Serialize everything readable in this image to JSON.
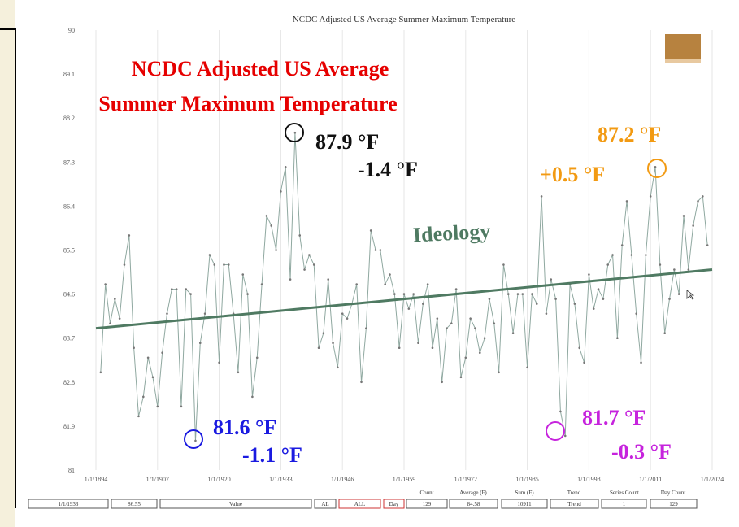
{
  "chart_data": {
    "type": "line",
    "title": "NCDC Adjusted US Average Summer Maximum Temperature",
    "xlim": [
      1894,
      2024
    ],
    "xticks": [
      {
        "value": 1894,
        "label": "1/1/1894"
      },
      {
        "value": 1907,
        "label": "1/1/1907"
      },
      {
        "value": 1920,
        "label": "1/1/1920"
      },
      {
        "value": 1933,
        "label": "1/1/1933"
      },
      {
        "value": 1946,
        "label": "1/1/1946"
      },
      {
        "value": 1959,
        "label": "1/1/1959"
      },
      {
        "value": 1972,
        "label": "1/1/1972"
      },
      {
        "value": 1985,
        "label": "1/1/1985"
      },
      {
        "value": 1998,
        "label": "1/1/1998"
      },
      {
        "value": 2011,
        "label": "1/1/2011"
      },
      {
        "value": 2024,
        "label": "1/1/2024"
      }
    ],
    "ylim": [
      81,
      90
    ],
    "yticks": [
      81,
      81.9,
      82.8,
      83.7,
      84.6,
      85.5,
      86.4,
      87.3,
      88.2,
      89.1,
      90
    ],
    "grid": true,
    "series": [
      {
        "color": "#8fa8a0",
        "markers": true,
        "x": [
          1895,
          1896,
          1897,
          1898,
          1899,
          1900,
          1901,
          1902,
          1903,
          1904,
          1905,
          1906,
          1907,
          1908,
          1909,
          1910,
          1911,
          1912,
          1913,
          1914,
          1915,
          1916,
          1917,
          1918,
          1919,
          1920,
          1921,
          1922,
          1923,
          1924,
          1925,
          1926,
          1927,
          1928,
          1929,
          1930,
          1931,
          1932,
          1933,
          1934,
          1935,
          1936,
          1937,
          1938,
          1939,
          1940,
          1941,
          1942,
          1943,
          1944,
          1945,
          1946,
          1947,
          1948,
          1949,
          1950,
          1951,
          1952,
          1953,
          1954,
          1955,
          1956,
          1957,
          1958,
          1959,
          1960,
          1961,
          1962,
          1963,
          1964,
          1965,
          1966,
          1967,
          1968,
          1969,
          1970,
          1971,
          1972,
          1973,
          1974,
          1975,
          1976,
          1977,
          1978,
          1979,
          1980,
          1981,
          1982,
          1983,
          1984,
          1985,
          1986,
          1987,
          1988,
          1989,
          1990,
          1991,
          1992,
          1993,
          1994,
          1995,
          1996,
          1997,
          1998,
          1999,
          2000,
          2001,
          2002,
          2003,
          2004,
          2005,
          2006,
          2007,
          2008,
          2009,
          2010,
          2011,
          2012,
          2013,
          2014,
          2015,
          2016,
          2017,
          2018,
          2019,
          2020,
          2021,
          2022,
          2023
        ],
        "values": [
          83.0,
          84.8,
          84.0,
          84.5,
          84.1,
          85.2,
          85.8,
          83.5,
          82.1,
          82.5,
          83.3,
          82.9,
          82.3,
          83.4,
          84.2,
          84.7,
          84.7,
          82.3,
          84.7,
          84.6,
          81.6,
          83.6,
          84.2,
          85.4,
          85.2,
          83.2,
          85.2,
          85.2,
          84.2,
          83.0,
          85.0,
          84.6,
          82.5,
          83.3,
          84.8,
          86.2,
          86.0,
          85.5,
          86.7,
          87.2,
          84.9,
          87.9,
          85.8,
          85.1,
          85.4,
          85.2,
          83.5,
          83.8,
          84.9,
          83.6,
          83.1,
          84.2,
          84.1,
          84.4,
          84.8,
          82.8,
          83.9,
          85.9,
          85.5,
          85.5,
          84.8,
          85.0,
          84.6,
          83.5,
          84.6,
          84.3,
          84.6,
          83.6,
          84.4,
          84.8,
          83.5,
          84.1,
          82.8,
          83.9,
          84.0,
          84.7,
          82.9,
          83.3,
          84.1,
          83.9,
          83.4,
          83.7,
          84.5,
          84.0,
          83.0,
          85.2,
          84.6,
          83.8,
          84.6,
          84.6,
          83.1,
          84.6,
          84.4,
          86.6,
          84.2,
          84.9,
          84.5,
          82.2,
          81.7,
          84.8,
          84.4,
          83.5,
          83.2,
          85.0,
          84.3,
          84.7,
          84.5,
          85.2,
          85.4,
          83.7,
          85.6,
          86.5,
          85.4,
          84.2,
          83.2,
          85.4,
          86.6,
          87.2,
          85.2,
          83.8,
          84.5,
          85.1,
          84.6,
          86.2,
          85.1,
          86.0,
          86.5,
          86.6,
          85.6
        ]
      },
      {
        "name": "Ideology",
        "color": "#4f7a62",
        "markers": false,
        "x": [
          1894,
          2024
        ],
        "values": [
          83.9,
          85.1
        ]
      }
    ],
    "annotations": [
      {
        "text": "NCDC Adjusted US Average",
        "color": "#e60000"
      },
      {
        "text": "Summer Maximum Temperature",
        "color": "#e60000"
      },
      {
        "text": "87.9 °F",
        "color": "#111111"
      },
      {
        "text": "-1.4 °F",
        "color": "#111111"
      },
      {
        "text": "87.2 °F",
        "color": "#f29a12"
      },
      {
        "text": "+0.5 °F",
        "color": "#f29a12"
      },
      {
        "text": "81.6 °F",
        "color": "#1a1ae0"
      },
      {
        "text": "-1.1 °F",
        "color": "#1a1ae0"
      },
      {
        "text": "81.7 °F",
        "color": "#c623dd"
      },
      {
        "text": "-0.3 °F",
        "color": "#c623dd"
      }
    ]
  },
  "status_bar": {
    "headers": [
      "Count",
      "Average (F)",
      "Sum (F)",
      "Trend",
      "Series Count",
      "Day Count"
    ],
    "fields": [
      "1/1/1933",
      "86.55",
      "Value",
      "AL",
      "ALL",
      "Day",
      "129",
      "84.58",
      "10911",
      "Trend",
      "1",
      "129"
    ]
  }
}
